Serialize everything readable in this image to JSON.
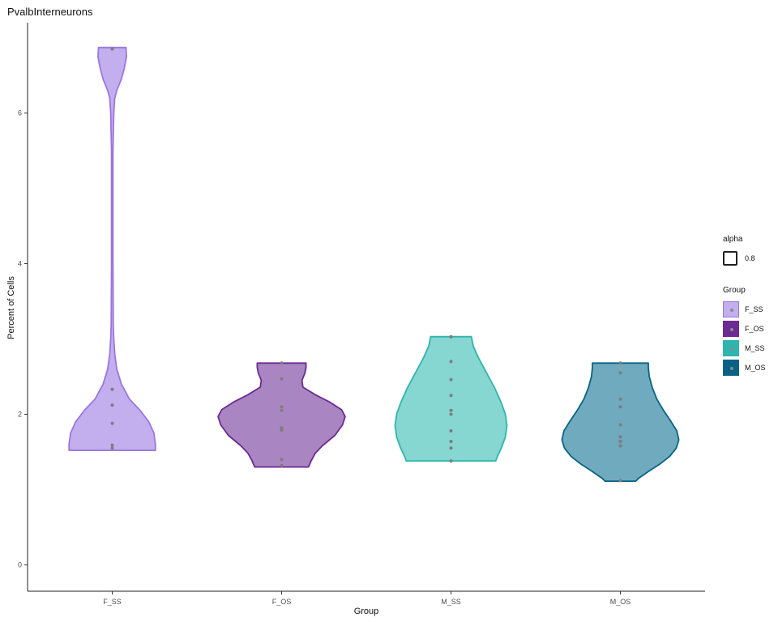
{
  "chart_data": {
    "type": "violin",
    "title": "PvalbInterneurons",
    "xlabel": "Group",
    "ylabel": "Percent of Cells",
    "categories": [
      "F_SS",
      "F_OS",
      "M_SS",
      "M_OS"
    ],
    "yticks": [
      "0",
      "2",
      "4",
      "6"
    ],
    "ylim": [
      -0.35,
      7.2
    ],
    "grid": false,
    "legend_position": "right",
    "series": [
      {
        "name": "F_SS",
        "fill": "#c3aeee",
        "stroke": "#9b76e0",
        "points": [
          6.85,
          2.33,
          2.12,
          1.88,
          1.59,
          1.55
        ],
        "profile": [
          [
            1.52,
            0.85
          ],
          [
            1.6,
            0.85
          ],
          [
            1.75,
            0.82
          ],
          [
            1.9,
            0.72
          ],
          [
            2.05,
            0.55
          ],
          [
            2.2,
            0.34
          ],
          [
            2.4,
            0.18
          ],
          [
            2.6,
            0.09
          ],
          [
            2.8,
            0.05
          ],
          [
            3.0,
            0.03
          ],
          [
            3.2,
            0.02
          ],
          [
            4.0,
            0.015
          ],
          [
            5.5,
            0.015
          ],
          [
            6.0,
            0.03
          ],
          [
            6.2,
            0.05
          ],
          [
            6.3,
            0.09
          ],
          [
            6.45,
            0.18
          ],
          [
            6.6,
            0.24
          ],
          [
            6.75,
            0.28
          ],
          [
            6.87,
            0.27
          ]
        ]
      },
      {
        "name": "F_OS",
        "fill": "#a985c1",
        "stroke": "#6b2b93",
        "points": [
          2.68,
          2.47,
          2.1,
          2.05,
          1.82,
          1.79,
          1.4,
          1.32
        ],
        "profile": [
          [
            1.3,
            0.53
          ],
          [
            1.38,
            0.58
          ],
          [
            1.48,
            0.66
          ],
          [
            1.58,
            0.8
          ],
          [
            1.72,
            1.05
          ],
          [
            1.86,
            1.2
          ],
          [
            1.97,
            1.25
          ],
          [
            2.06,
            1.18
          ],
          [
            2.16,
            0.95
          ],
          [
            2.26,
            0.66
          ],
          [
            2.36,
            0.42
          ],
          [
            2.45,
            0.4
          ],
          [
            2.55,
            0.46
          ],
          [
            2.62,
            0.48
          ],
          [
            2.68,
            0.48
          ]
        ]
      },
      {
        "name": "M_SS",
        "fill": "#86d6d1",
        "stroke": "#2eb5ae",
        "points": [
          3.03,
          2.7,
          2.46,
          2.25,
          2.05,
          2.0,
          1.78,
          1.64,
          1.55,
          1.38
        ],
        "profile": [
          [
            1.38,
            0.88
          ],
          [
            1.45,
            0.92
          ],
          [
            1.55,
            0.99
          ],
          [
            1.7,
            1.07
          ],
          [
            1.85,
            1.1
          ],
          [
            2.0,
            1.07
          ],
          [
            2.15,
            0.99
          ],
          [
            2.35,
            0.86
          ],
          [
            2.55,
            0.7
          ],
          [
            2.75,
            0.54
          ],
          [
            2.9,
            0.44
          ],
          [
            3.03,
            0.4
          ]
        ]
      },
      {
        "name": "M_OS",
        "fill": "#6faabf",
        "stroke": "#0a6384",
        "points": [
          2.68,
          2.55,
          2.2,
          2.1,
          1.86,
          1.7,
          1.64,
          1.58,
          1.12
        ],
        "profile": [
          [
            1.11,
            0.3
          ],
          [
            1.15,
            0.36
          ],
          [
            1.24,
            0.55
          ],
          [
            1.34,
            0.78
          ],
          [
            1.44,
            0.97
          ],
          [
            1.55,
            1.1
          ],
          [
            1.66,
            1.15
          ],
          [
            1.78,
            1.11
          ],
          [
            1.9,
            1.0
          ],
          [
            2.05,
            0.85
          ],
          [
            2.2,
            0.72
          ],
          [
            2.35,
            0.63
          ],
          [
            2.5,
            0.57
          ],
          [
            2.62,
            0.55
          ],
          [
            2.68,
            0.55
          ]
        ]
      }
    ],
    "legend": {
      "alpha_title": "alpha",
      "alpha_value": "0.8",
      "group_title": "Group"
    }
  }
}
